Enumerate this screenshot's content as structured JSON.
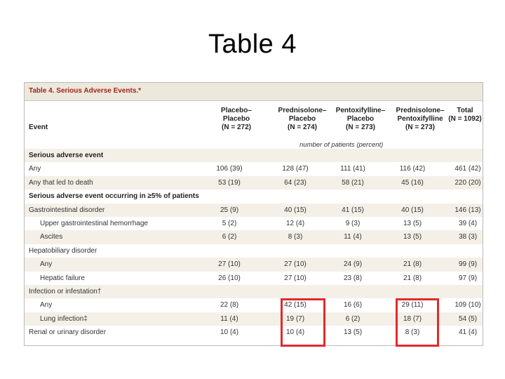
{
  "slide_title": "Table 4",
  "table": {
    "caption_number": "Table 4.",
    "caption_text": "Serious Adverse Events.*",
    "event_header": "Event",
    "columns": [
      {
        "line1": "Placebo–",
        "line2": "Placebo",
        "line3": "(N = 272)"
      },
      {
        "line1": "Prednisolone–",
        "line2": "Placebo",
        "line3": "(N = 274)"
      },
      {
        "line1": "Pentoxifylline–",
        "line2": "Placebo",
        "line3": "(N = 273)"
      },
      {
        "line1": "Prednisolone–",
        "line2": "Pentoxifylline",
        "line3": "(N = 273)"
      },
      {
        "line1": "",
        "line2": "Total",
        "line3": "(N = 1092)"
      }
    ],
    "units_note": "number of patients (percent)",
    "rows": [
      {
        "label": "Serious adverse event",
        "section": true,
        "indent": 0,
        "values": []
      },
      {
        "label": "Any",
        "section": false,
        "indent": 0,
        "values": [
          "106 (39)",
          "128 (47)",
          "111 (41)",
          "116 (42)",
          "461 (42)"
        ]
      },
      {
        "label": "Any that led to death",
        "section": false,
        "indent": 0,
        "values": [
          "53 (19)",
          "64 (23)",
          "58 (21)",
          "45 (16)",
          "220 (20)"
        ]
      },
      {
        "label": "Serious adverse event occurring in ≥5% of patients",
        "section": true,
        "indent": 0,
        "values": []
      },
      {
        "label": "Gastrointestinal disorder",
        "section": false,
        "indent": 0,
        "values": [
          "25 (9)",
          "40 (15)",
          "41 (15)",
          "40 (15)",
          "146 (13)"
        ]
      },
      {
        "label": "Upper gastrointestinal hemorrhage",
        "section": false,
        "indent": 1,
        "values": [
          "5 (2)",
          "12 (4)",
          "9 (3)",
          "13 (5)",
          "39 (4)"
        ]
      },
      {
        "label": "Ascites",
        "section": false,
        "indent": 1,
        "values": [
          "6 (2)",
          "8 (3)",
          "11 (4)",
          "13 (5)",
          "38 (3)"
        ]
      },
      {
        "label": "Hepatobiliary disorder",
        "section": false,
        "indent": 0,
        "values": []
      },
      {
        "label": "Any",
        "section": false,
        "indent": 1,
        "values": [
          "27 (10)",
          "27 (10)",
          "24 (9)",
          "21 (8)",
          "99 (9)"
        ]
      },
      {
        "label": "Hepatic failure",
        "section": false,
        "indent": 1,
        "values": [
          "26 (10)",
          "27 (10)",
          "23 (8)",
          "21 (8)",
          "97 (9)"
        ]
      },
      {
        "label": "Infection or infestation†",
        "section": false,
        "indent": 0,
        "values": []
      },
      {
        "label": "Any",
        "section": false,
        "indent": 1,
        "values": [
          "22 (8)",
          "42 (15)",
          "16 (6)",
          "29 (11)",
          "109 (10)"
        ]
      },
      {
        "label": "Lung infection‡",
        "section": false,
        "indent": 1,
        "values": [
          "11 (4)",
          "19 (7)",
          "6 (2)",
          "18 (7)",
          "54 (5)"
        ]
      },
      {
        "label": "Renal or urinary disorder",
        "section": false,
        "indent": 0,
        "values": [
          "10 (4)",
          "10 (4)",
          "13 (5)",
          "8 (3)",
          "41 (4)"
        ]
      }
    ],
    "highlight_color": "#e02b2b",
    "accent_color": "#a3241c"
  }
}
